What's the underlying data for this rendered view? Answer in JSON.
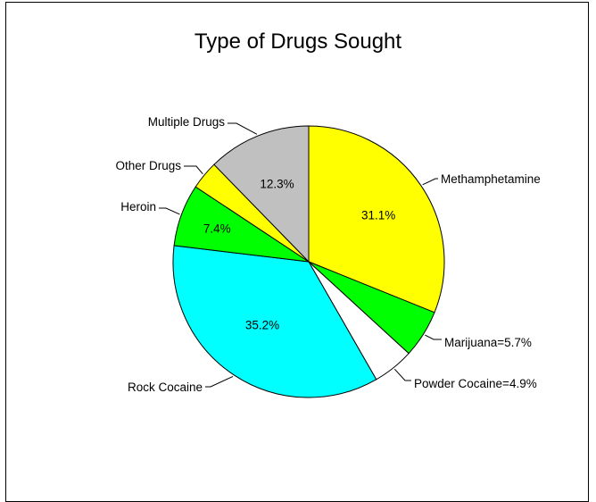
{
  "chart_data": {
    "type": "pie",
    "title": "Type of Drugs Sought",
    "slices": [
      {
        "name": "Methamphetamine",
        "value": 31.1,
        "color": "#ffff00",
        "outer_label": "Methamphetamine",
        "inner_label": "31.1%"
      },
      {
        "name": "Marijuana",
        "value": 5.7,
        "color": "#00ff00",
        "outer_label": "Marijuana=5.7%",
        "inner_label": ""
      },
      {
        "name": "Powder Cocaine",
        "value": 4.9,
        "color": "#ffffff",
        "outer_label": "Powder Cocaine=4.9%",
        "inner_label": ""
      },
      {
        "name": "Rock Cocaine",
        "value": 35.2,
        "color": "#00ffff",
        "outer_label": "Rock Cocaine",
        "inner_label": "35.2%"
      },
      {
        "name": "Heroin",
        "value": 7.4,
        "color": "#00ff00",
        "outer_label": "Heroin",
        "inner_label": "7.4%"
      },
      {
        "name": "Other Drugs",
        "value": 3.4,
        "color": "#ffff00",
        "outer_label": "Other Drugs",
        "inner_label": ""
      },
      {
        "name": "Multiple Drugs",
        "value": 12.3,
        "color": "#c0c0c0",
        "outer_label": "Multiple Drugs",
        "inner_label": "12.3%"
      }
    ]
  }
}
